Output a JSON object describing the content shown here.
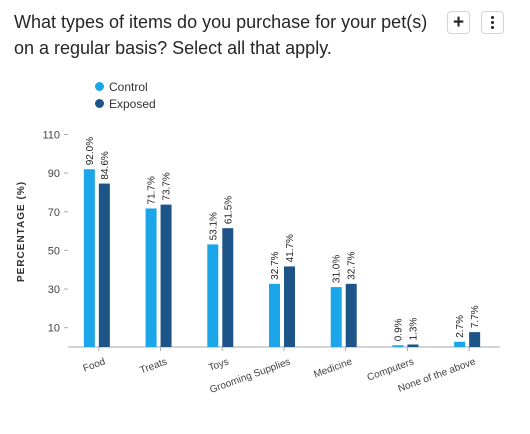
{
  "question": "What types of items do you purchase for your pet(s) on a regular basis? Select all that apply.",
  "toolbar": {
    "add_label": "+",
    "more_icon": "more-vertical-icon"
  },
  "colors": {
    "control": "#1aa6e8",
    "exposed": "#1d5588"
  },
  "chart_data": {
    "type": "bar",
    "ylabel": "PERCENTAGE (%)",
    "xlabel": "",
    "yticks": [
      10,
      30,
      50,
      70,
      90,
      110
    ],
    "categories": [
      "Food",
      "Treats",
      "Toys",
      "Grooming Supplies",
      "Medicine",
      "Computers",
      "None of the above"
    ],
    "series": [
      {
        "name": "Control",
        "values": [
          92.0,
          71.7,
          53.1,
          32.7,
          31.0,
          0.9,
          2.7
        ],
        "labels": [
          "92.0%",
          "71.7%",
          "53.1%",
          "32.7%",
          "31.0%",
          "0.9%",
          "2.7%"
        ]
      },
      {
        "name": "Exposed",
        "values": [
          84.6,
          73.7,
          61.5,
          41.7,
          32.7,
          1.3,
          7.7
        ],
        "labels": [
          "84.6%",
          "73.7%",
          "61.5%",
          "41.7%",
          "32.7%",
          "1.3%",
          "7.7%"
        ]
      }
    ],
    "legend_position": "top-left",
    "grid": false
  }
}
